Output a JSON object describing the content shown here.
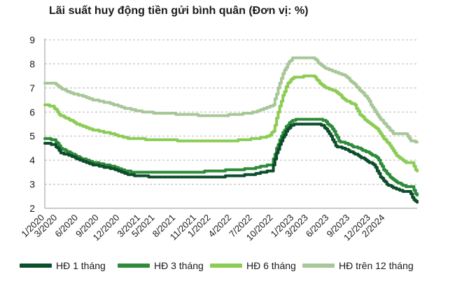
{
  "chart_data": {
    "type": "line",
    "title": "Lãi suất huy động tiền gửi bình quân (Đơn vị: %)",
    "xlabel": "",
    "ylabel": "",
    "ylim": [
      2,
      9
    ],
    "yticks": [
      "2",
      "3",
      "4",
      "5",
      "6",
      "7",
      "8",
      "9"
    ],
    "grid": true,
    "legend": "bottom",
    "x_tick_labels": [
      "1/2020",
      "3/2020",
      "6/2020",
      "9/2020",
      "12/2020",
      "3/2021",
      "5/2021",
      "8/2021",
      "11/2021",
      "1/2022",
      "4/2022",
      "7/2022",
      "10/2022",
      "1/2023",
      "3/2023",
      "6/2023",
      "9/2023",
      "12/2023",
      "2/2024"
    ],
    "x_tick_index": [
      0,
      8,
      21,
      34,
      47,
      60,
      69,
      82,
      95,
      104,
      117,
      130,
      143,
      156,
      165,
      178,
      191,
      204,
      213
    ],
    "x_count": 234,
    "series": [
      {
        "name": "HĐ 1 tháng",
        "color": "#0e4d2c",
        "knots": [
          [
            0,
            4.7
          ],
          [
            6,
            4.65
          ],
          [
            10,
            4.3
          ],
          [
            16,
            4.2
          ],
          [
            22,
            4.0
          ],
          [
            28,
            3.85
          ],
          [
            35,
            3.75
          ],
          [
            42,
            3.65
          ],
          [
            48,
            3.5
          ],
          [
            52,
            3.4
          ],
          [
            58,
            3.35
          ],
          [
            70,
            3.3
          ],
          [
            80,
            3.28
          ],
          [
            95,
            3.28
          ],
          [
            105,
            3.3
          ],
          [
            120,
            3.35
          ],
          [
            130,
            3.4
          ],
          [
            136,
            3.5
          ],
          [
            142,
            3.55
          ],
          [
            145,
            4.3
          ],
          [
            148,
            4.8
          ],
          [
            151,
            5.2
          ],
          [
            154,
            5.45
          ],
          [
            158,
            5.5
          ],
          [
            170,
            5.5
          ],
          [
            174,
            5.45
          ],
          [
            178,
            5.1
          ],
          [
            182,
            4.6
          ],
          [
            190,
            4.4
          ],
          [
            196,
            4.2
          ],
          [
            201,
            4.0
          ],
          [
            206,
            3.8
          ],
          [
            210,
            3.3
          ],
          [
            214,
            3.0
          ],
          [
            218,
            2.85
          ],
          [
            224,
            2.7
          ],
          [
            228,
            2.7
          ],
          [
            231,
            2.35
          ],
          [
            233,
            2.25
          ]
        ]
      },
      {
        "name": "HĐ 3 tháng",
        "color": "#2e8b3a",
        "knots": [
          [
            0,
            4.9
          ],
          [
            6,
            4.85
          ],
          [
            10,
            4.5
          ],
          [
            16,
            4.3
          ],
          [
            22,
            4.1
          ],
          [
            28,
            3.95
          ],
          [
            35,
            3.85
          ],
          [
            42,
            3.75
          ],
          [
            48,
            3.6
          ],
          [
            55,
            3.5
          ],
          [
            70,
            3.5
          ],
          [
            95,
            3.5
          ],
          [
            105,
            3.55
          ],
          [
            120,
            3.6
          ],
          [
            130,
            3.65
          ],
          [
            136,
            3.75
          ],
          [
            142,
            3.8
          ],
          [
            145,
            4.5
          ],
          [
            148,
            5.0
          ],
          [
            151,
            5.4
          ],
          [
            154,
            5.6
          ],
          [
            158,
            5.7
          ],
          [
            172,
            5.7
          ],
          [
            176,
            5.6
          ],
          [
            180,
            5.3
          ],
          [
            184,
            4.8
          ],
          [
            192,
            4.6
          ],
          [
            198,
            4.45
          ],
          [
            203,
            4.3
          ],
          [
            208,
            4.1
          ],
          [
            212,
            3.6
          ],
          [
            216,
            3.3
          ],
          [
            220,
            3.1
          ],
          [
            226,
            2.9
          ],
          [
            230,
            2.9
          ],
          [
            232,
            2.6
          ],
          [
            233,
            2.55
          ]
        ]
      },
      {
        "name": "HĐ 6 tháng",
        "color": "#8ccc55",
        "knots": [
          [
            0,
            6.3
          ],
          [
            5,
            6.25
          ],
          [
            9,
            5.9
          ],
          [
            15,
            5.7
          ],
          [
            22,
            5.45
          ],
          [
            28,
            5.3
          ],
          [
            35,
            5.2
          ],
          [
            42,
            5.1
          ],
          [
            47,
            5.0
          ],
          [
            52,
            4.92
          ],
          [
            60,
            4.88
          ],
          [
            75,
            4.85
          ],
          [
            90,
            4.8
          ],
          [
            100,
            4.78
          ],
          [
            115,
            4.8
          ],
          [
            125,
            4.85
          ],
          [
            133,
            4.9
          ],
          [
            140,
            5.0
          ],
          [
            143,
            5.2
          ],
          [
            146,
            6.0
          ],
          [
            149,
            6.7
          ],
          [
            152,
            7.2
          ],
          [
            156,
            7.45
          ],
          [
            168,
            7.5
          ],
          [
            172,
            7.2
          ],
          [
            176,
            7.0
          ],
          [
            182,
            6.85
          ],
          [
            188,
            6.5
          ],
          [
            194,
            6.3
          ],
          [
            197,
            5.9
          ],
          [
            202,
            5.6
          ],
          [
            208,
            5.3
          ],
          [
            212,
            4.9
          ],
          [
            216,
            4.6
          ],
          [
            220,
            4.2
          ],
          [
            226,
            3.9
          ],
          [
            230,
            3.9
          ],
          [
            232,
            3.6
          ],
          [
            233,
            3.55
          ]
        ]
      },
      {
        "name": "HĐ trên 12 tháng",
        "color": "#a8c798",
        "knots": [
          [
            0,
            7.2
          ],
          [
            6,
            7.2
          ],
          [
            10,
            7.0
          ],
          [
            16,
            6.8
          ],
          [
            22,
            6.7
          ],
          [
            28,
            6.55
          ],
          [
            35,
            6.45
          ],
          [
            42,
            6.35
          ],
          [
            48,
            6.2
          ],
          [
            55,
            6.1
          ],
          [
            62,
            6.0
          ],
          [
            72,
            5.95
          ],
          [
            90,
            5.9
          ],
          [
            100,
            5.85
          ],
          [
            110,
            5.85
          ],
          [
            120,
            5.9
          ],
          [
            128,
            5.95
          ],
          [
            134,
            6.05
          ],
          [
            140,
            6.2
          ],
          [
            143,
            6.3
          ],
          [
            146,
            7.0
          ],
          [
            149,
            7.6
          ],
          [
            152,
            8.0
          ],
          [
            155,
            8.25
          ],
          [
            168,
            8.25
          ],
          [
            172,
            8.0
          ],
          [
            176,
            7.8
          ],
          [
            182,
            7.65
          ],
          [
            188,
            7.5
          ],
          [
            193,
            7.2
          ],
          [
            197,
            6.9
          ],
          [
            201,
            6.65
          ],
          [
            205,
            6.2
          ],
          [
            209,
            5.8
          ],
          [
            214,
            5.4
          ],
          [
            218,
            5.1
          ],
          [
            226,
            5.1
          ],
          [
            229,
            4.8
          ],
          [
            233,
            4.75
          ]
        ]
      }
    ]
  },
  "legend": [
    "HĐ 1 tháng",
    "HĐ 3 tháng",
    "HĐ 6 tháng",
    "HĐ trên 12 tháng"
  ]
}
